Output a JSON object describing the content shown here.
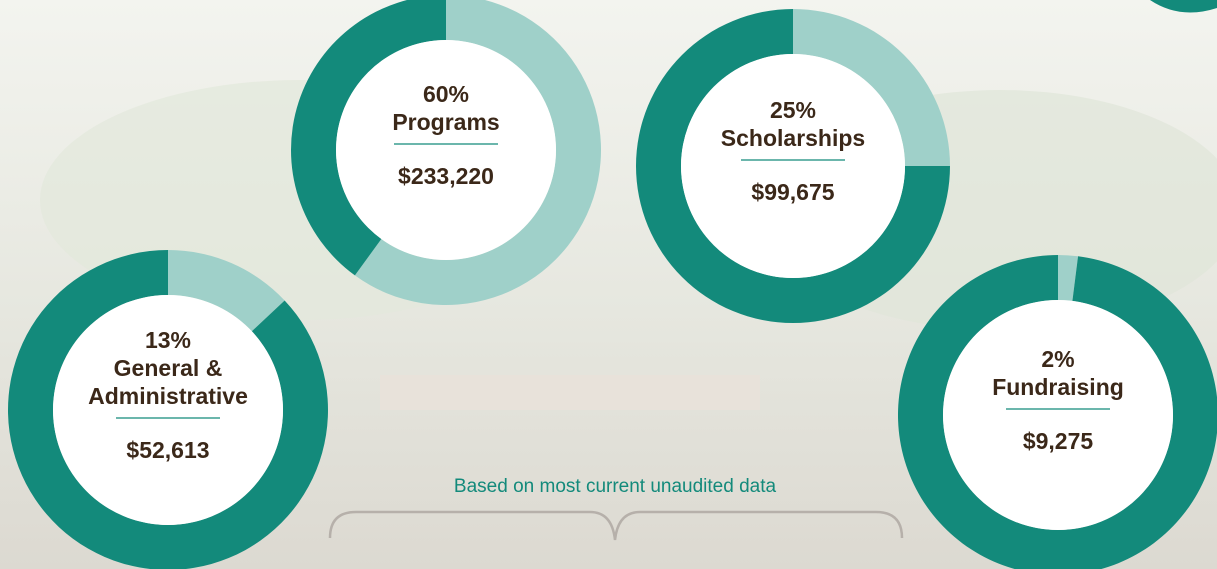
{
  "chart_data": [
    {
      "type": "donut",
      "title": "Programs",
      "values": [
        60,
        40
      ],
      "value_labels": [
        "60%",
        null
      ],
      "colors": [
        "#9fd0c9",
        "#138a7b"
      ],
      "amount": "$233,220"
    },
    {
      "type": "donut",
      "title": "Scholarships",
      "values": [
        25,
        75
      ],
      "value_labels": [
        "25%",
        null
      ],
      "colors": [
        "#9fd0c9",
        "#138a7b"
      ],
      "amount": "$99,675"
    },
    {
      "type": "donut",
      "title": "General & Administrative",
      "values": [
        13,
        87
      ],
      "value_labels": [
        "13%",
        null
      ],
      "colors": [
        "#9fd0c9",
        "#138a7b"
      ],
      "amount": "$52,613"
    },
    {
      "type": "donut",
      "title": "Fundraising",
      "values": [
        2,
        98
      ],
      "value_labels": [
        "2%",
        null
      ],
      "colors": [
        "#9fd0c9",
        "#138a7b"
      ],
      "amount": "$9,275"
    }
  ],
  "note": "Based on most current unaudited data"
}
